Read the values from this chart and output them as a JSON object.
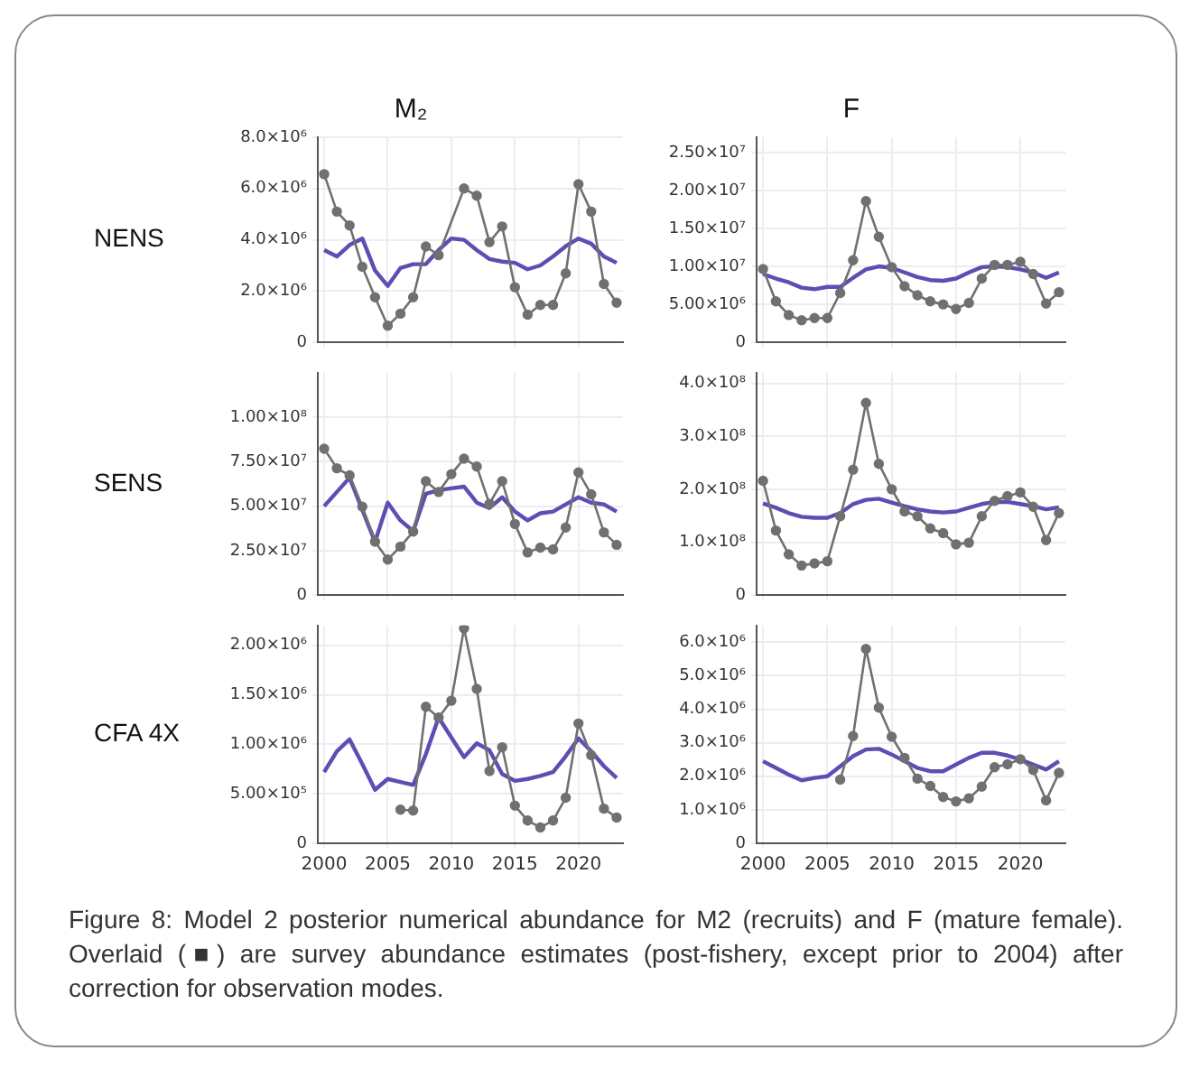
{
  "chart_data": [
    {
      "type": "line",
      "title": "M₂",
      "ylabel": "NENS",
      "x": [
        2000,
        2001,
        2002,
        2003,
        2004,
        2005,
        2006,
        2007,
        2008,
        2009,
        2010,
        2011,
        2012,
        2013,
        2014,
        2015,
        2016,
        2017,
        2018,
        2019,
        2020,
        2021,
        2022,
        2023
      ],
      "xlim": [
        1999.5,
        2023.5
      ],
      "xticks": [
        2000,
        2005,
        2010,
        2015,
        2020
      ],
      "ylim": [
        0,
        8000000.0
      ],
      "yticks": [
        {
          "value": 0,
          "label": "0"
        },
        {
          "value": 2000000.0,
          "label": "2.0×10⁶"
        },
        {
          "value": 4000000.0,
          "label": "4.0×10⁶"
        },
        {
          "value": 6000000.0,
          "label": "6.0×10⁶"
        },
        {
          "value": 8000000.0,
          "label": "8.0×10⁶"
        }
      ],
      "tick_labels": "y",
      "grid": true,
      "series": [
        {
          "color": "#5b4fb3",
          "marker": "none",
          "values": [
            3600000.0,
            3350000.0,
            3800000.0,
            4050000.0,
            2800000.0,
            2200000.0,
            2900000.0,
            3050000.0,
            3050000.0,
            3600000.0,
            4050000.0,
            4000000.0,
            3600000.0,
            3250000.0,
            3150000.0,
            3100000.0,
            2850000.0,
            3000000.0,
            3350000.0,
            3750000.0,
            4050000.0,
            3850000.0,
            3350000.0,
            3100000.0
          ]
        },
        {
          "color": "#707070",
          "marker": "circle",
          "x": [
            2000,
            2001,
            2002,
            2003,
            2004,
            2005,
            2006,
            2007,
            2008,
            2009,
            2011,
            2012,
            2013,
            2014,
            2015,
            2016,
            2017,
            2018,
            2019,
            2020,
            2021,
            2022,
            2023
          ],
          "values": [
            6560000.0,
            5100000.0,
            4560000.0,
            2950000.0,
            1760000.0,
            650000.0,
            1120000.0,
            1760000.0,
            3740000.0,
            3400000.0,
            6000000.0,
            5720000.0,
            3910000.0,
            4520000.0,
            2150000.0,
            1080000.0,
            1460000.0,
            1460000.0,
            2690000.0,
            6170000.0,
            5100000.0,
            2280000.0,
            1550000.0
          ]
        }
      ]
    },
    {
      "type": "line",
      "title": "F",
      "x": [
        2000,
        2001,
        2002,
        2003,
        2004,
        2005,
        2006,
        2007,
        2008,
        2009,
        2010,
        2011,
        2012,
        2013,
        2014,
        2015,
        2016,
        2017,
        2018,
        2019,
        2020,
        2021,
        2022,
        2023
      ],
      "xlim": [
        1999.5,
        2023.5
      ],
      "xticks": [
        2000,
        2005,
        2010,
        2015,
        2020
      ],
      "ylim": [
        0,
        27000000.0
      ],
      "yticks": [
        {
          "value": 0,
          "label": "0"
        },
        {
          "value": 5000000.0,
          "label": "5.00×10⁶"
        },
        {
          "value": 10000000.0,
          "label": "1.00×10⁷"
        },
        {
          "value": 15000000.0,
          "label": "1.50×10⁷"
        },
        {
          "value": 20000000.0,
          "label": "2.00×10⁷"
        },
        {
          "value": 25000000.0,
          "label": "2.50×10⁷"
        }
      ],
      "tick_labels": "y",
      "grid": true,
      "series": [
        {
          "color": "#5b4fb3",
          "marker": "none",
          "values": [
            9000000.0,
            8400000.0,
            7900000.0,
            7200000.0,
            7000000.0,
            7300000.0,
            7300000.0,
            8500000.0,
            9600000.0,
            10000000.0,
            9800000.0,
            9200000.0,
            8600000.0,
            8200000.0,
            8100000.0,
            8400000.0,
            9200000.0,
            9900000.0,
            10000000.0,
            9900000.0,
            9600000.0,
            9200000.0,
            8500000.0,
            9200000.0
          ]
        },
        {
          "color": "#707070",
          "marker": "circle",
          "values": [
            9650000.0,
            5400000.0,
            3600000.0,
            2900000.0,
            3200000.0,
            3200000.0,
            6500000.0,
            10800000.0,
            18600000.0,
            13900000.0,
            9900000.0,
            7400000.0,
            6200000.0,
            5400000.0,
            5000000.0,
            4400000.0,
            5200000.0,
            8400000.0,
            10200000.0,
            10200000.0,
            10600000.0,
            9000000.0,
            5100000.0,
            6600000.0
          ]
        }
      ]
    },
    {
      "type": "line",
      "ylabel": "SENS",
      "x": [
        2000,
        2001,
        2002,
        2003,
        2004,
        2005,
        2006,
        2007,
        2008,
        2009,
        2010,
        2011,
        2012,
        2013,
        2014,
        2015,
        2016,
        2017,
        2018,
        2019,
        2020,
        2021,
        2022,
        2023
      ],
      "xlim": [
        1999.5,
        2023.5
      ],
      "xticks": [
        2000,
        2005,
        2010,
        2015,
        2020
      ],
      "ylim": [
        0,
        125000000.0
      ],
      "yticks": [
        {
          "value": 0,
          "label": "0"
        },
        {
          "value": 25000000.0,
          "label": "2.50×10⁷"
        },
        {
          "value": 50000000.0,
          "label": "5.00×10⁷"
        },
        {
          "value": 75000000.0,
          "label": "7.50×10⁷"
        },
        {
          "value": 100000000.0,
          "label": "1.00×10⁸"
        }
      ],
      "tick_labels": "y",
      "grid": true,
      "series": [
        {
          "color": "#5b4fb3",
          "marker": "none",
          "values": [
            50000000.0,
            58000000.0,
            66000000.0,
            48000000.0,
            30000000.0,
            52000000.0,
            42000000.0,
            36000000.0,
            57000000.0,
            59000000.0,
            60000000.0,
            61000000.0,
            52000000.0,
            49000000.0,
            55000000.0,
            47000000.0,
            42000000.0,
            46000000.0,
            47000000.0,
            51000000.0,
            55000000.0,
            52000000.0,
            51000000.0,
            47000000.0
          ]
        },
        {
          "color": "#707070",
          "marker": "circle",
          "values": [
            82300000.0,
            71300000.0,
            67300000.0,
            49700000.0,
            30000000.0,
            20000000.0,
            27300000.0,
            35700000.0,
            64000000.0,
            58000000.0,
            68000000.0,
            76700000.0,
            72300000.0,
            51300000.0,
            64000000.0,
            40000000.0,
            24000000.0,
            26700000.0,
            25700000.0,
            38000000.0,
            69000000.0,
            56700000.0,
            35300000.0,
            28300000.0
          ]
        }
      ]
    },
    {
      "type": "line",
      "x": [
        2000,
        2001,
        2002,
        2003,
        2004,
        2005,
        2006,
        2007,
        2008,
        2009,
        2010,
        2011,
        2012,
        2013,
        2014,
        2015,
        2016,
        2017,
        2018,
        2019,
        2020,
        2021,
        2022,
        2023
      ],
      "xlim": [
        1999.5,
        2023.5
      ],
      "xticks": [
        2000,
        2005,
        2010,
        2015,
        2020
      ],
      "ylim": [
        0,
        420000000.0
      ],
      "yticks": [
        {
          "value": 0,
          "label": "0"
        },
        {
          "value": 100000000.0,
          "label": "1.0×10⁸"
        },
        {
          "value": 200000000.0,
          "label": "2.0×10⁸"
        },
        {
          "value": 300000000.0,
          "label": "3.0×10⁸"
        },
        {
          "value": 400000000.0,
          "label": "4.0×10⁸"
        }
      ],
      "tick_labels": "y",
      "grid": true,
      "series": [
        {
          "color": "#5b4fb3",
          "marker": "none",
          "values": [
            173000000.0,
            165000000.0,
            155000000.0,
            148000000.0,
            146000000.0,
            146000000.0,
            155000000.0,
            172000000.0,
            180000000.0,
            182000000.0,
            175000000.0,
            168000000.0,
            162000000.0,
            158000000.0,
            156000000.0,
            158000000.0,
            165000000.0,
            172000000.0,
            176000000.0,
            176000000.0,
            172000000.0,
            168000000.0,
            162000000.0,
            166000000.0
          ]
        },
        {
          "color": "#707070",
          "marker": "circle",
          "values": [
            216000000.0,
            122000000.0,
            77000000.0,
            56000000.0,
            60000000.0,
            64000000.0,
            149000000.0,
            237000000.0,
            363000000.0,
            248000000.0,
            200000000.0,
            158000000.0,
            149000000.0,
            126000000.0,
            117000000.0,
            96000000.0,
            99000000.0,
            149000000.0,
            178000000.0,
            187000000.0,
            194000000.0,
            167000000.0,
            104000000.0,
            155000000.0
          ]
        }
      ]
    },
    {
      "type": "line",
      "ylabel": "CFA 4X",
      "x": [
        2000,
        2001,
        2002,
        2003,
        2004,
        2005,
        2006,
        2007,
        2008,
        2009,
        2010,
        2011,
        2012,
        2013,
        2014,
        2015,
        2016,
        2017,
        2018,
        2019,
        2020,
        2021,
        2022,
        2023
      ],
      "xlim": [
        1999.5,
        2023.5
      ],
      "xticks": [
        2000,
        2005,
        2010,
        2015,
        2020
      ],
      "ylim": [
        0,
        2200000.0
      ],
      "yticks": [
        {
          "value": 0,
          "label": "0"
        },
        {
          "value": 500000.0,
          "label": "5.00×10⁵"
        },
        {
          "value": 1000000.0,
          "label": "1.00×10⁶"
        },
        {
          "value": 1500000.0,
          "label": "1.50×10⁶"
        },
        {
          "value": 2000000.0,
          "label": "2.00×10⁶"
        }
      ],
      "grid": true,
      "series": [
        {
          "color": "#5b4fb3",
          "marker": "none",
          "values": [
            720000.0,
            930000.0,
            1050000.0,
            800000.0,
            540000.0,
            650000.0,
            620000.0,
            590000.0,
            900000.0,
            1270000.0,
            1070000.0,
            870000.0,
            1010000.0,
            940000.0,
            700000.0,
            630000.0,
            650000.0,
            680000.0,
            720000.0,
            880000.0,
            1060000.0,
            930000.0,
            780000.0,
            660000.0
          ]
        },
        {
          "color": "#707070",
          "marker": "circle",
          "x": [
            2006,
            2007,
            2008,
            2009,
            2010,
            2011,
            2012,
            2013,
            2014,
            2015,
            2016,
            2017,
            2018,
            2019,
            2020,
            2021,
            2022,
            2023
          ],
          "values": [
            340000.0,
            330000.0,
            1380000.0,
            1270000.0,
            1440000.0,
            2170000.0,
            1560000.0,
            730000.0,
            970000.0,
            380000.0,
            230000.0,
            160000.0,
            230000.0,
            460000.0,
            1210000.0,
            890000.0,
            350000.0,
            260000.0
          ]
        }
      ]
    },
    {
      "type": "line",
      "x": [
        2000,
        2001,
        2002,
        2003,
        2004,
        2005,
        2006,
        2007,
        2008,
        2009,
        2010,
        2011,
        2012,
        2013,
        2014,
        2015,
        2016,
        2017,
        2018,
        2019,
        2020,
        2021,
        2022,
        2023
      ],
      "xlim": [
        1999.5,
        2023.5
      ],
      "xticks": [
        2000,
        2005,
        2010,
        2015,
        2020
      ],
      "ylim": [
        0,
        6500000.0
      ],
      "yticks": [
        {
          "value": 0,
          "label": "0"
        },
        {
          "value": 1000000.0,
          "label": "1.0×10⁶"
        },
        {
          "value": 2000000.0,
          "label": "2.0×10⁶"
        },
        {
          "value": 3000000.0,
          "label": "3.0×10⁶"
        },
        {
          "value": 4000000.0,
          "label": "4.0×10⁶"
        },
        {
          "value": 5000000.0,
          "label": "5.0×10⁶"
        },
        {
          "value": 6000000.0,
          "label": "6.0×10⁶"
        }
      ],
      "grid": true,
      "annotations": [
        "Figure 8: Model 2 posterior numerical abundance for M2 (recruits) and F (mature female). Overlaid (■) are survey abundance estimates (post-fishery, except prior to 2004) after correction for observation modes."
      ],
      "series": [
        {
          "color": "#5b4fb3",
          "marker": "none",
          "values": [
            2450000.0,
            2250000.0,
            2050000.0,
            1880000.0,
            1950000.0,
            2000000.0,
            2300000.0,
            2600000.0,
            2800000.0,
            2820000.0,
            2650000.0,
            2450000.0,
            2250000.0,
            2150000.0,
            2150000.0,
            2350000.0,
            2550000.0,
            2700000.0,
            2700000.0,
            2620000.0,
            2500000.0,
            2350000.0,
            2200000.0,
            2450000.0
          ]
        },
        {
          "color": "#707070",
          "marker": "circle",
          "x": [
            2006,
            2007,
            2008,
            2009,
            2010,
            2011,
            2012,
            2013,
            2014,
            2015,
            2016,
            2017,
            2018,
            2019,
            2020,
            2021,
            2022,
            2023
          ],
          "values": [
            1900000.0,
            3200000.0,
            5800000.0,
            4050000.0,
            3180000.0,
            2550000.0,
            1930000.0,
            1710000.0,
            1380000.0,
            1250000.0,
            1340000.0,
            1690000.0,
            2270000.0,
            2360000.0,
            2510000.0,
            2190000.0,
            1280000.0,
            2100000.0
          ]
        }
      ]
    }
  ]
}
